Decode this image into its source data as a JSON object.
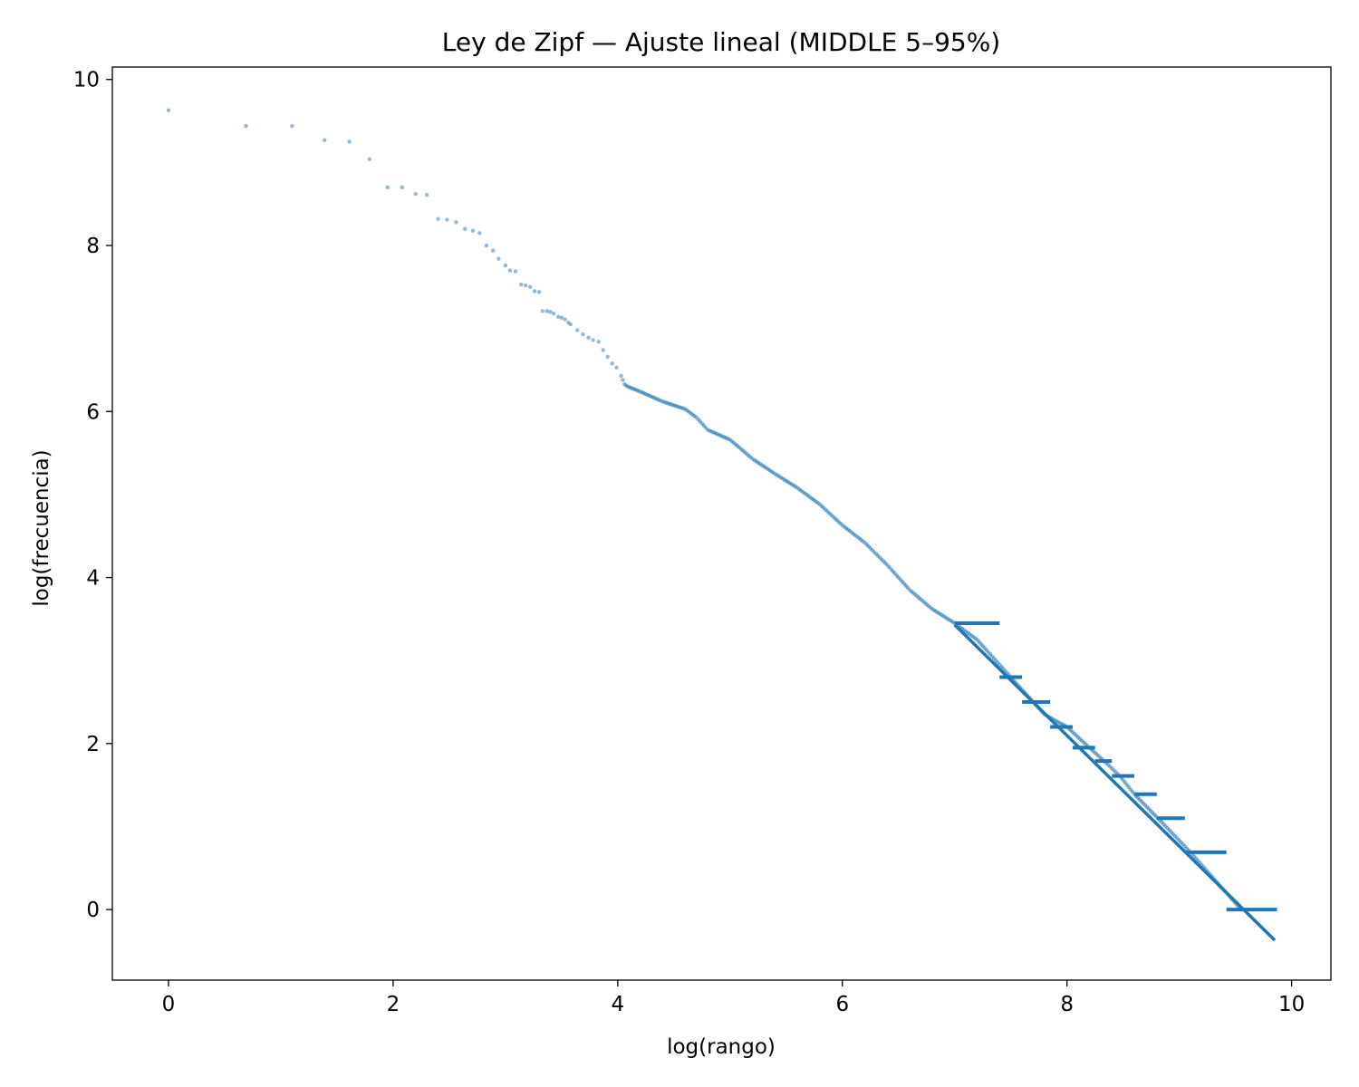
{
  "chart_data": {
    "type": "scatter",
    "title": "Ley de Zipf — Ajuste lineal (MIDDLE 5–95%)",
    "xlabel": "log(rango)",
    "ylabel": "log(frecuencia)",
    "xlim": [
      -0.5,
      10.35
    ],
    "ylim": [
      -0.85,
      10.15
    ],
    "xticks": [
      0,
      2,
      4,
      6,
      8,
      10
    ],
    "yticks": [
      0,
      2,
      4,
      6,
      8,
      10
    ],
    "grid": false,
    "colors": {
      "series": "#1f77b4",
      "axes": "#000000"
    },
    "series": [
      {
        "kind": "points",
        "description_points": [
          [
            0.0,
            9.63
          ],
          [
            0.69,
            9.44
          ],
          [
            1.1,
            9.44
          ],
          [
            1.39,
            9.27
          ],
          [
            1.61,
            9.25
          ],
          [
            1.79,
            9.04
          ],
          [
            1.95,
            8.7
          ],
          [
            2.08,
            8.7
          ],
          [
            2.2,
            8.62
          ],
          [
            2.3,
            8.61
          ],
          [
            2.4,
            8.32
          ],
          [
            2.48,
            8.31
          ],
          [
            2.56,
            8.28
          ],
          [
            2.64,
            8.2
          ],
          [
            2.71,
            8.18
          ],
          [
            2.77,
            8.15
          ],
          [
            2.83,
            8.0
          ],
          [
            2.89,
            7.94
          ],
          [
            2.94,
            7.84
          ],
          [
            3.0,
            7.76
          ],
          [
            3.04,
            7.7
          ],
          [
            3.09,
            7.69
          ],
          [
            3.14,
            7.53
          ],
          [
            3.18,
            7.52
          ],
          [
            3.22,
            7.5
          ],
          [
            3.26,
            7.45
          ],
          [
            3.3,
            7.44
          ],
          [
            3.33,
            7.21
          ],
          [
            3.37,
            7.21
          ],
          [
            3.4,
            7.2
          ],
          [
            3.43,
            7.18
          ],
          [
            3.47,
            7.14
          ],
          [
            3.5,
            7.13
          ],
          [
            3.53,
            7.11
          ],
          [
            3.56,
            7.07
          ],
          [
            3.58,
            7.05
          ],
          [
            3.64,
            6.98
          ],
          [
            3.69,
            6.93
          ],
          [
            3.74,
            6.89
          ],
          [
            3.78,
            6.86
          ],
          [
            3.83,
            6.84
          ],
          [
            3.87,
            6.74
          ],
          [
            3.91,
            6.66
          ],
          [
            3.95,
            6.58
          ],
          [
            3.99,
            6.53
          ],
          [
            4.03,
            6.43
          ],
          [
            4.06,
            6.33
          ],
          [
            4.09,
            6.3
          ],
          [
            4.2,
            6.24
          ],
          [
            4.4,
            6.12
          ],
          [
            4.6,
            6.03
          ],
          [
            4.7,
            5.93
          ],
          [
            4.8,
            5.78
          ],
          [
            5.0,
            5.66
          ],
          [
            5.2,
            5.43
          ],
          [
            5.4,
            5.25
          ],
          [
            5.6,
            5.08
          ],
          [
            5.8,
            4.88
          ],
          [
            6.0,
            4.63
          ],
          [
            6.2,
            4.42
          ],
          [
            6.4,
            4.15
          ],
          [
            6.6,
            3.85
          ],
          [
            6.8,
            3.62
          ],
          [
            7.0,
            3.45
          ],
          [
            7.2,
            3.25
          ],
          [
            7.4,
            2.95
          ],
          [
            7.6,
            2.65
          ],
          [
            7.8,
            2.35
          ],
          [
            8.0,
            2.2
          ],
          [
            8.2,
            1.95
          ],
          [
            8.33,
            1.79
          ],
          [
            8.47,
            1.61
          ],
          [
            8.6,
            1.39
          ],
          [
            8.81,
            1.1
          ],
          [
            9.1,
            0.69
          ],
          [
            9.55,
            0.0
          ]
        ]
      },
      {
        "kind": "fit-line",
        "x": [
          7.0,
          9.85
        ],
        "y": [
          3.43,
          -0.37
        ]
      }
    ]
  }
}
